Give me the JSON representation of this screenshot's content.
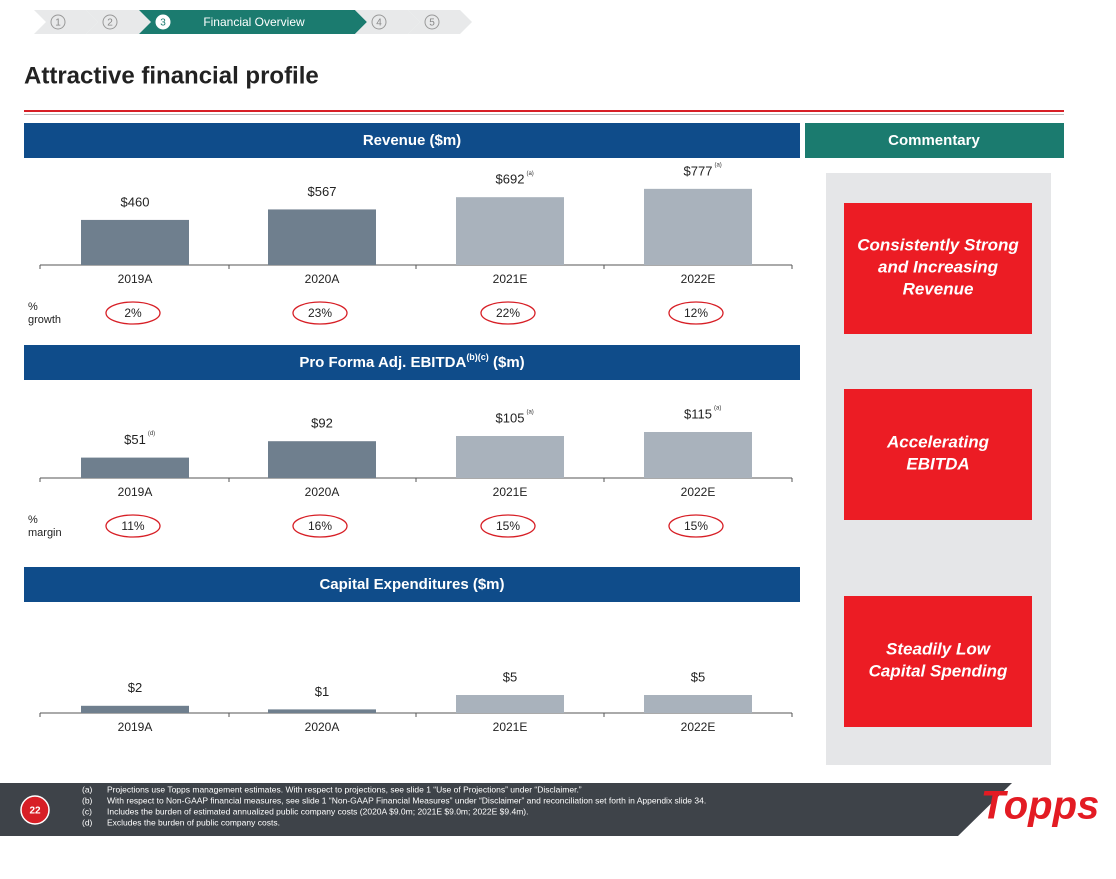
{
  "nav": {
    "steps": [
      "1",
      "2",
      "3",
      "4",
      "5"
    ],
    "active_label": "Financial Overview"
  },
  "header": {
    "title": "Attractive financial profile"
  },
  "chart_data": [
    {
      "type": "bar",
      "title": "Revenue ($m)",
      "categories": [
        "2019A",
        "2020A",
        "2021E",
        "2022E"
      ],
      "values": [
        460,
        567,
        692,
        777
      ],
      "value_labels": [
        "$460",
        "$567",
        "$692",
        "$777"
      ],
      "value_notes": [
        null,
        null,
        "(a)",
        "(a)"
      ],
      "colors": [
        "#6f7f8e",
        "#6f7f8e",
        "#a9b2bc",
        "#a9b2bc"
      ],
      "footer_row": {
        "label_lines": [
          "%",
          "growth"
        ],
        "values": [
          "2%",
          "23%",
          "22%",
          "12%"
        ]
      }
    },
    {
      "type": "bar",
      "title": "Pro Forma Adj. EBITDA",
      "title_note": "(b)(c)",
      "title_unit": "($m)",
      "categories": [
        "2019A",
        "2020A",
        "2021E",
        "2022E"
      ],
      "values": [
        51,
        92,
        105,
        115
      ],
      "value_labels": [
        "$51",
        "$92",
        "$105",
        "$115"
      ],
      "value_notes": [
        "(d)",
        null,
        "(a)",
        "(a)"
      ],
      "colors": [
        "#6f7f8e",
        "#6f7f8e",
        "#a9b2bc",
        "#a9b2bc"
      ],
      "footer_row": {
        "label_lines": [
          "%",
          "margin"
        ],
        "values": [
          "11%",
          "16%",
          "15%",
          "15%"
        ]
      }
    },
    {
      "type": "bar",
      "title": "Capital Expenditures ($m)",
      "categories": [
        "2019A",
        "2020A",
        "2021E",
        "2022E"
      ],
      "values": [
        2,
        1,
        5,
        5
      ],
      "value_labels": [
        "$2",
        "$1",
        "$5",
        "$5"
      ],
      "colors": [
        "#6f7f8e",
        "#6f7f8e",
        "#a9b2bc",
        "#a9b2bc"
      ]
    }
  ],
  "commentary": {
    "title": "Commentary",
    "items": [
      [
        "Consistently Strong",
        "and Increasing",
        "Revenue"
      ],
      [
        "Accelerating",
        "EBITDA"
      ],
      [
        "Steadily Low",
        "Capital Spending"
      ]
    ]
  },
  "footnotes": [
    {
      "marker": "(a)",
      "text": "Projections use Topps management estimates. With respect to projections, see slide 1 “Use of Projections” under “Disclaimer.”"
    },
    {
      "marker": "(b)",
      "text": "With respect to Non-GAAP financial measures, see slide 1 “Non-GAAP Financial Measures” under “Disclaimer” and reconciliation set forth in Appendix slide 34."
    },
    {
      "marker": "(c)",
      "text": "Includes the burden of estimated annualized public company costs (2020A $9.0m; 2021E $9.0m; 2022E $9.4m)."
    },
    {
      "marker": "(d)",
      "text": "Excludes the burden of public company costs."
    }
  ],
  "page_number": "22",
  "logo": "Topps"
}
